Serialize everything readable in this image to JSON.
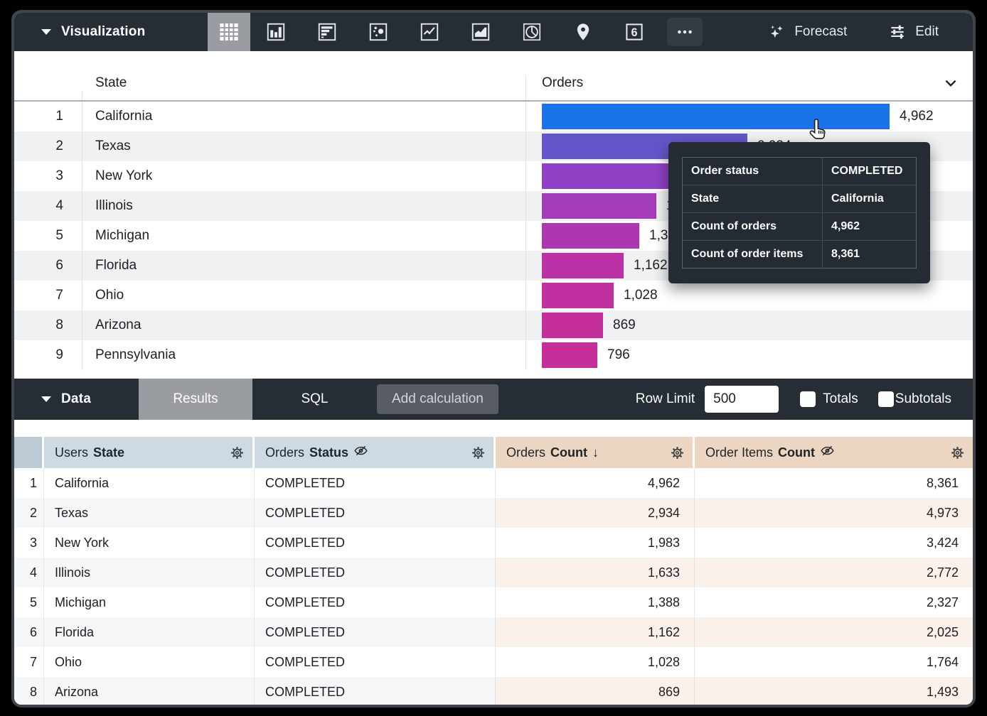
{
  "viz_toolbar": {
    "label": "Visualization",
    "single_value_glyph": "6",
    "forecast_label": "Forecast",
    "edit_label": "Edit"
  },
  "viz_table": {
    "state_header": "State",
    "orders_header": "Orders",
    "max_count": 4962,
    "rows": [
      {
        "n": "1",
        "state": "California",
        "count": 4962,
        "count_display": "4,962",
        "color": "#1a73e8"
      },
      {
        "n": "2",
        "state": "Texas",
        "count": 2934,
        "count_display": "2,934",
        "color": "#6456c9"
      },
      {
        "n": "3",
        "state": "New York",
        "count": 1983,
        "count_display": "1,983",
        "color": "#8f42c4"
      },
      {
        "n": "4",
        "state": "Illinois",
        "count": 1633,
        "count_display": "1,633",
        "color": "#a43bb8"
      },
      {
        "n": "5",
        "state": "Michigan",
        "count": 1388,
        "count_display": "1,388",
        "color": "#ae36af"
      },
      {
        "n": "6",
        "state": "Florida",
        "count": 1162,
        "count_display": "1,162",
        "color": "#bb32a6"
      },
      {
        "n": "7",
        "state": "Ohio",
        "count": 1028,
        "count_display": "1,028",
        "color": "#c130a0"
      },
      {
        "n": "8",
        "state": "Arizona",
        "count": 869,
        "count_display": "869",
        "color": "#c42f9c"
      },
      {
        "n": "9",
        "state": "Pennsylvania",
        "count": 796,
        "count_display": "796",
        "color": "#c62f99"
      }
    ]
  },
  "tooltip": {
    "rows": [
      {
        "label": "Order status",
        "value": "COMPLETED"
      },
      {
        "label": "State",
        "value": "California"
      },
      {
        "label": "Count of orders",
        "value": "4,962"
      },
      {
        "label": "Count of order items",
        "value": "8,361"
      }
    ]
  },
  "data_bar": {
    "label": "Data",
    "results_tab": "Results",
    "sql_tab": "SQL",
    "add_calculation": "Add calculation",
    "row_limit_label": "Row Limit",
    "row_limit_value": "500",
    "totals_label": "Totals",
    "subtotals_label": "Subtotals"
  },
  "data_table": {
    "headers": {
      "state": {
        "prefix": "Users",
        "name": "State"
      },
      "status": {
        "prefix": "Orders",
        "name": "Status"
      },
      "count": {
        "prefix": "Orders",
        "name": "Count",
        "sort": "↓"
      },
      "items": {
        "prefix": "Order Items",
        "name": "Count"
      }
    },
    "rows": [
      {
        "n": "1",
        "state": "California",
        "status": "COMPLETED",
        "orders_count": "4,962",
        "order_items_count": "8,361"
      },
      {
        "n": "2",
        "state": "Texas",
        "status": "COMPLETED",
        "orders_count": "2,934",
        "order_items_count": "4,973"
      },
      {
        "n": "3",
        "state": "New York",
        "status": "COMPLETED",
        "orders_count": "1,983",
        "order_items_count": "3,424"
      },
      {
        "n": "4",
        "state": "Illinois",
        "status": "COMPLETED",
        "orders_count": "1,633",
        "order_items_count": "2,772"
      },
      {
        "n": "5",
        "state": "Michigan",
        "status": "COMPLETED",
        "orders_count": "1,388",
        "order_items_count": "2,327"
      },
      {
        "n": "6",
        "state": "Florida",
        "status": "COMPLETED",
        "orders_count": "1,162",
        "order_items_count": "2,025"
      },
      {
        "n": "7",
        "state": "Ohio",
        "status": "COMPLETED",
        "orders_count": "1,028",
        "order_items_count": "1,764"
      },
      {
        "n": "8",
        "state": "Arizona",
        "status": "COMPLETED",
        "orders_count": "869",
        "order_items_count": "1,493"
      }
    ]
  },
  "chart_data": {
    "type": "bar",
    "orientation": "horizontal",
    "categories": [
      "California",
      "Texas",
      "New York",
      "Illinois",
      "Michigan",
      "Florida",
      "Ohio",
      "Arizona",
      "Pennsylvania"
    ],
    "values": [
      4962,
      2934,
      1983,
      1633,
      1388,
      1162,
      1028,
      869,
      796
    ],
    "title": "Orders",
    "xlabel": "",
    "ylabel": "State",
    "series_label": "Count of orders"
  },
  "colors": {
    "toolbar_bg": "#262d35",
    "selected_tab": "#999da1",
    "dimension_header": "#cdd9e3",
    "measure_header": "#ecd5c1",
    "bar_start": "#1a73e8",
    "bar_end": "#c62f99"
  }
}
